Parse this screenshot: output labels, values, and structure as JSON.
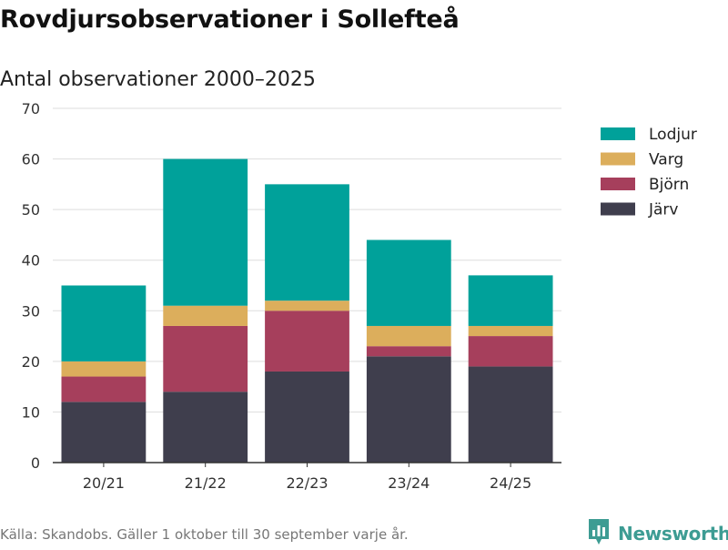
{
  "title": "Rovdjursobservationer i Sollefteå",
  "subtitle": "Antal observationer 2000–2025",
  "footer": {
    "source": "Källa: Skandobs. Gäller 1 oktober till 30 september varje år.",
    "brand": "Newsworthy",
    "brand_icon": "newsworthy-logo-icon"
  },
  "chart_data": {
    "type": "bar",
    "stacked": true,
    "title": "Rovdjursobservationer i Sollefteå",
    "subtitle": "Antal observationer 2000–2025",
    "xlabel": "",
    "ylabel": "",
    "ylim": [
      0,
      70
    ],
    "yticks": [
      0,
      10,
      20,
      30,
      40,
      50,
      60,
      70
    ],
    "grid": true,
    "legend_position": "top-right",
    "categories": [
      "20/21",
      "21/22",
      "22/23",
      "23/24",
      "24/25"
    ],
    "series": [
      {
        "name": "Järv",
        "color": "#3f3e4d",
        "values": [
          12,
          14,
          18,
          21,
          19
        ]
      },
      {
        "name": "Björn",
        "color": "#a63f5c",
        "values": [
          5,
          13,
          12,
          2,
          6
        ]
      },
      {
        "name": "Varg",
        "color": "#dcae5c",
        "values": [
          3,
          4,
          2,
          4,
          2
        ]
      },
      {
        "name": "Lodjur",
        "color": "#00a19a",
        "values": [
          15,
          29,
          23,
          17,
          10
        ]
      }
    ],
    "legend_order": [
      "Lodjur",
      "Varg",
      "Björn",
      "Järv"
    ]
  }
}
